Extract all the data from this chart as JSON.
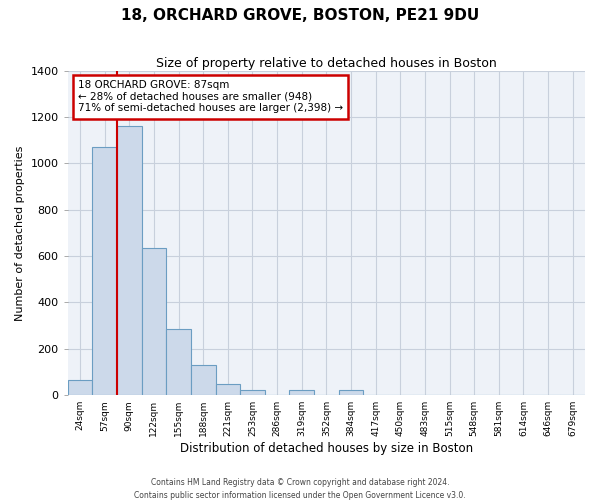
{
  "title": "18, ORCHARD GROVE, BOSTON, PE21 9DU",
  "subtitle": "Size of property relative to detached houses in Boston",
  "xlabel": "Distribution of detached houses by size in Boston",
  "ylabel": "Number of detached properties",
  "bin_labels": [
    "24sqm",
    "57sqm",
    "90sqm",
    "122sqm",
    "155sqm",
    "188sqm",
    "221sqm",
    "253sqm",
    "286sqm",
    "319sqm",
    "352sqm",
    "384sqm",
    "417sqm",
    "450sqm",
    "483sqm",
    "515sqm",
    "548sqm",
    "581sqm",
    "614sqm",
    "646sqm",
    "679sqm"
  ],
  "bar_heights": [
    65,
    1070,
    1160,
    635,
    285,
    130,
    48,
    22,
    0,
    22,
    0,
    22,
    0,
    0,
    0,
    0,
    0,
    0,
    0,
    0,
    0
  ],
  "bar_color": "#ccd9ea",
  "bar_edge_color": "#6b9dc2",
  "annotation_line1": "18 ORCHARD GROVE: 87sqm",
  "annotation_line2": "← 28% of detached houses are smaller (948)",
  "annotation_line3": "71% of semi-detached houses are larger (2,398) →",
  "annotation_box_color": "#ffffff",
  "annotation_box_edge": "#cc0000",
  "vline_color": "#cc0000",
  "vline_x": 1.5,
  "ylim": [
    0,
    1400
  ],
  "yticks": [
    0,
    200,
    400,
    600,
    800,
    1000,
    1200,
    1400
  ],
  "footnote1": "Contains HM Land Registry data © Crown copyright and database right 2024.",
  "footnote2": "Contains public sector information licensed under the Open Government Licence v3.0.",
  "background_color": "#eef2f8",
  "grid_color": "#c8d0dc",
  "title_fontsize": 11,
  "subtitle_fontsize": 9
}
